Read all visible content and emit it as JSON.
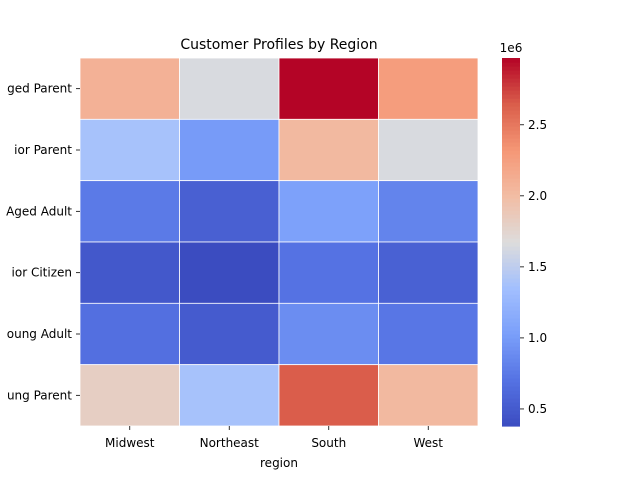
{
  "chart_data": {
    "type": "heatmap",
    "title": "Customer Profiles by Region",
    "xlabel": "region",
    "ylabel": "",
    "x_categories": [
      "Midwest",
      "Northeast",
      "South",
      "West"
    ],
    "y_categories": [
      "Middle-Aged Parent",
      "Senior Parent",
      "Middle-Aged Adult",
      "Senior Citizen",
      "Young Adult",
      "Young Parent"
    ],
    "y_tick_labels_visible": [
      "ged Parent",
      "ior Parent",
      "Aged Adult",
      "ior Citizen",
      "oung Adult",
      "ung Parent"
    ],
    "values": [
      [
        2100000,
        1650000,
        2970000,
        2270000
      ],
      [
        1380000,
        1000000,
        2030000,
        1650000
      ],
      [
        760000,
        550000,
        1050000,
        830000
      ],
      [
        480000,
        380000,
        700000,
        560000
      ],
      [
        680000,
        510000,
        900000,
        730000
      ],
      [
        1820000,
        1380000,
        2650000,
        2030000
      ]
    ],
    "colormap": "coolwarm",
    "color_range": [
      380000,
      2970000
    ],
    "colorbar": {
      "ticks": [
        0.5,
        1.0,
        1.5,
        2.0,
        2.5
      ],
      "tick_labels": [
        "0.5",
        "1.0",
        "1.5",
        "2.0",
        "2.5"
      ],
      "offset_label": "1e6"
    },
    "grid": true,
    "legend": "colorbar-right"
  }
}
